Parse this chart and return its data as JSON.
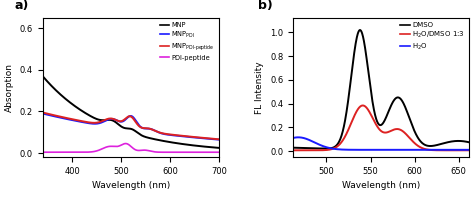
{
  "panel_a": {
    "title": "a)",
    "xlabel": "Wavelength (nm)",
    "ylabel": "Absorption",
    "xlim": [
      340,
      700
    ],
    "ylim": [
      -0.02,
      0.65
    ],
    "yticks": [
      0.0,
      0.2,
      0.4,
      0.6
    ],
    "colors": [
      "#000000",
      "#1a1aff",
      "#dd2222",
      "#dd22dd"
    ],
    "linewidths": [
      1.4,
      1.4,
      1.4,
      1.2
    ]
  },
  "panel_b": {
    "title": "b)",
    "xlabel": "Wavelength (nm)",
    "ylabel": "FL Intensity",
    "xlim": [
      462,
      662
    ],
    "ylim": [
      -0.05,
      1.12
    ],
    "yticks": [
      0.0,
      0.2,
      0.4,
      0.6,
      0.8,
      1.0
    ],
    "colors": [
      "#000000",
      "#dd2222",
      "#1a1aff"
    ],
    "linewidths": [
      1.4,
      1.4,
      1.4
    ]
  },
  "background_color": "#ffffff",
  "fig_background": "#ffffff"
}
